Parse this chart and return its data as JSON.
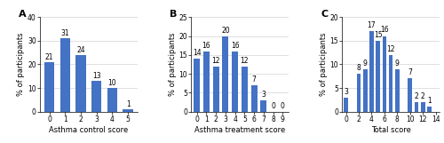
{
  "panel_A": {
    "label": "A",
    "x": [
      0,
      1,
      2,
      3,
      4,
      5
    ],
    "y": [
      21,
      31,
      24,
      13,
      10,
      1
    ],
    "xlabel": "Asthma control score",
    "ylabel": "% of participants",
    "ylim": [
      0,
      40
    ],
    "yticks": [
      0,
      10,
      20,
      30,
      40
    ],
    "xlim": [
      -0.6,
      5.6
    ],
    "xticks": [
      0,
      1,
      2,
      3,
      4,
      5
    ]
  },
  "panel_B": {
    "label": "B",
    "x": [
      0,
      1,
      2,
      3,
      4,
      5,
      6,
      7,
      8,
      9
    ],
    "y": [
      14,
      16,
      12,
      20,
      16,
      12,
      7,
      3,
      0,
      0
    ],
    "xlabel": "Asthma treatment score",
    "ylabel": "% of participants",
    "ylim": [
      0,
      25
    ],
    "yticks": [
      0,
      5,
      10,
      15,
      20,
      25
    ],
    "xlim": [
      -0.6,
      9.6
    ],
    "xticks": [
      0,
      1,
      2,
      3,
      4,
      5,
      6,
      7,
      8,
      9
    ]
  },
  "panel_C": {
    "label": "C",
    "x": [
      0,
      2,
      3,
      4,
      5,
      6,
      7,
      8,
      10,
      11,
      12,
      13
    ],
    "y": [
      3,
      8,
      9,
      17,
      15,
      16,
      12,
      9,
      7,
      2,
      2,
      1
    ],
    "xlabel": "Total score",
    "ylabel": "% of participants",
    "ylim": [
      0,
      20
    ],
    "yticks": [
      0,
      5,
      10,
      15,
      20
    ],
    "xlim": [
      -0.6,
      14.6
    ],
    "xticks": [
      0,
      2,
      4,
      6,
      8,
      10,
      12,
      14
    ]
  },
  "bar_color": "#4472C4",
  "bar_width": 0.65,
  "tick_fontsize": 5.5,
  "axis_label_fontsize": 6.0,
  "annotation_fontsize": 5.5,
  "panel_label_fontsize": 8
}
